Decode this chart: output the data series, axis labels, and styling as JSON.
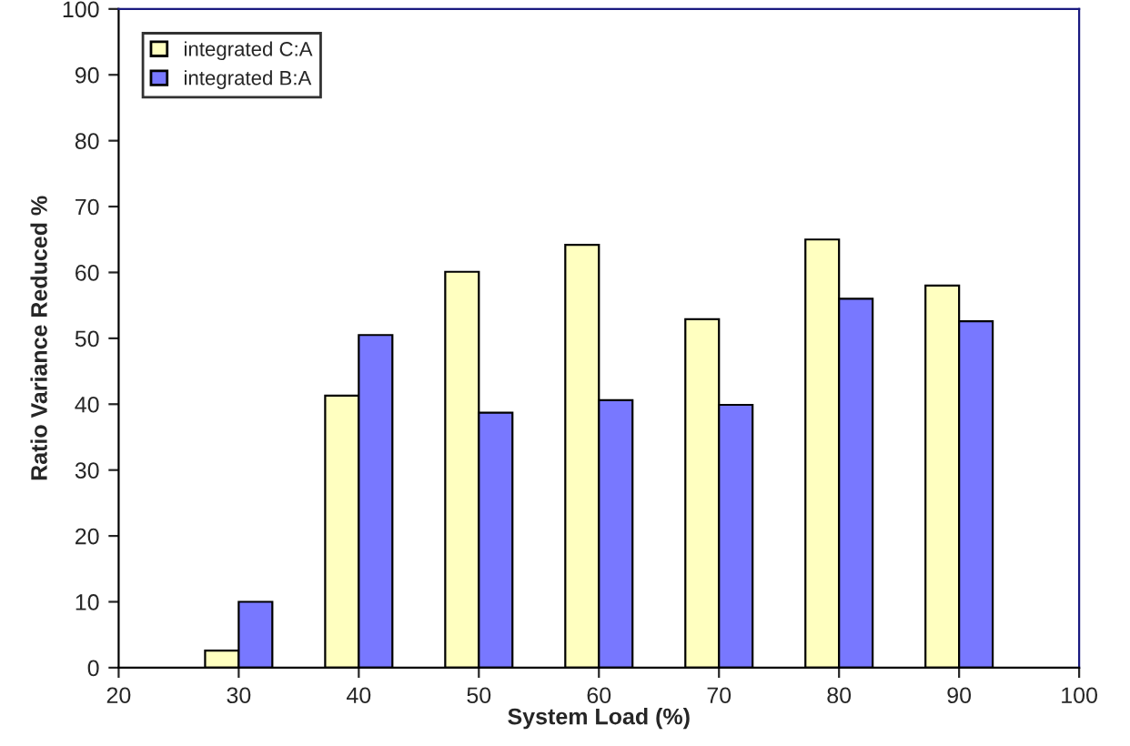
{
  "chart_data": {
    "type": "bar",
    "xlabel": "System Load (%)",
    "ylabel": "Ratio Variance Reduced %",
    "x": [
      30,
      40,
      50,
      60,
      70,
      80,
      90
    ],
    "series": [
      {
        "name": "integrated C:A",
        "color": "#ffffc0",
        "values": [
          2.6,
          41.3,
          60.1,
          64.2,
          52.9,
          65,
          58
        ]
      },
      {
        "name": "integrated B:A",
        "color": "#7878ff",
        "values": [
          10,
          50.5,
          38.7,
          40.6,
          39.9,
          56,
          52.6
        ]
      }
    ],
    "xlim": [
      20,
      100
    ],
    "xticks": [
      20,
      30,
      40,
      50,
      60,
      70,
      80,
      90,
      100
    ],
    "ylim": [
      0,
      100
    ],
    "yticks": [
      0,
      10,
      20,
      30,
      40,
      50,
      60,
      70,
      80,
      90,
      100
    ],
    "grid": false,
    "legend": "top left"
  }
}
